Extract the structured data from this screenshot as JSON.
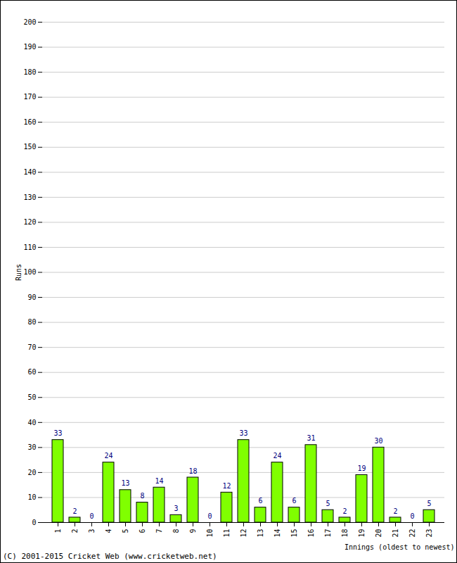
{
  "chart_data": {
    "type": "bar",
    "x_label": "Innings (oldest to newest)",
    "y_label": "Runs",
    "caption": "(C) 2001-2015 Cricket Web (www.cricketweb.net)",
    "categories": [
      "1",
      "2",
      "3",
      "4",
      "5",
      "6",
      "7",
      "8",
      "9",
      "10",
      "11",
      "12",
      "13",
      "14",
      "15",
      "16",
      "17",
      "18",
      "19",
      "20",
      "21",
      "22",
      "23"
    ],
    "values": [
      33,
      2,
      0,
      24,
      13,
      8,
      14,
      3,
      18,
      0,
      12,
      33,
      6,
      24,
      6,
      31,
      5,
      2,
      19,
      30,
      2,
      0,
      5
    ],
    "color": "#80ff00",
    "ylim": [
      0,
      200
    ],
    "yticks": [
      0,
      10,
      20,
      30,
      40,
      50,
      60,
      70,
      80,
      90,
      100,
      110,
      120,
      130,
      140,
      150,
      160,
      170,
      180,
      190,
      200
    ],
    "grid": true,
    "data_labels": true
  }
}
